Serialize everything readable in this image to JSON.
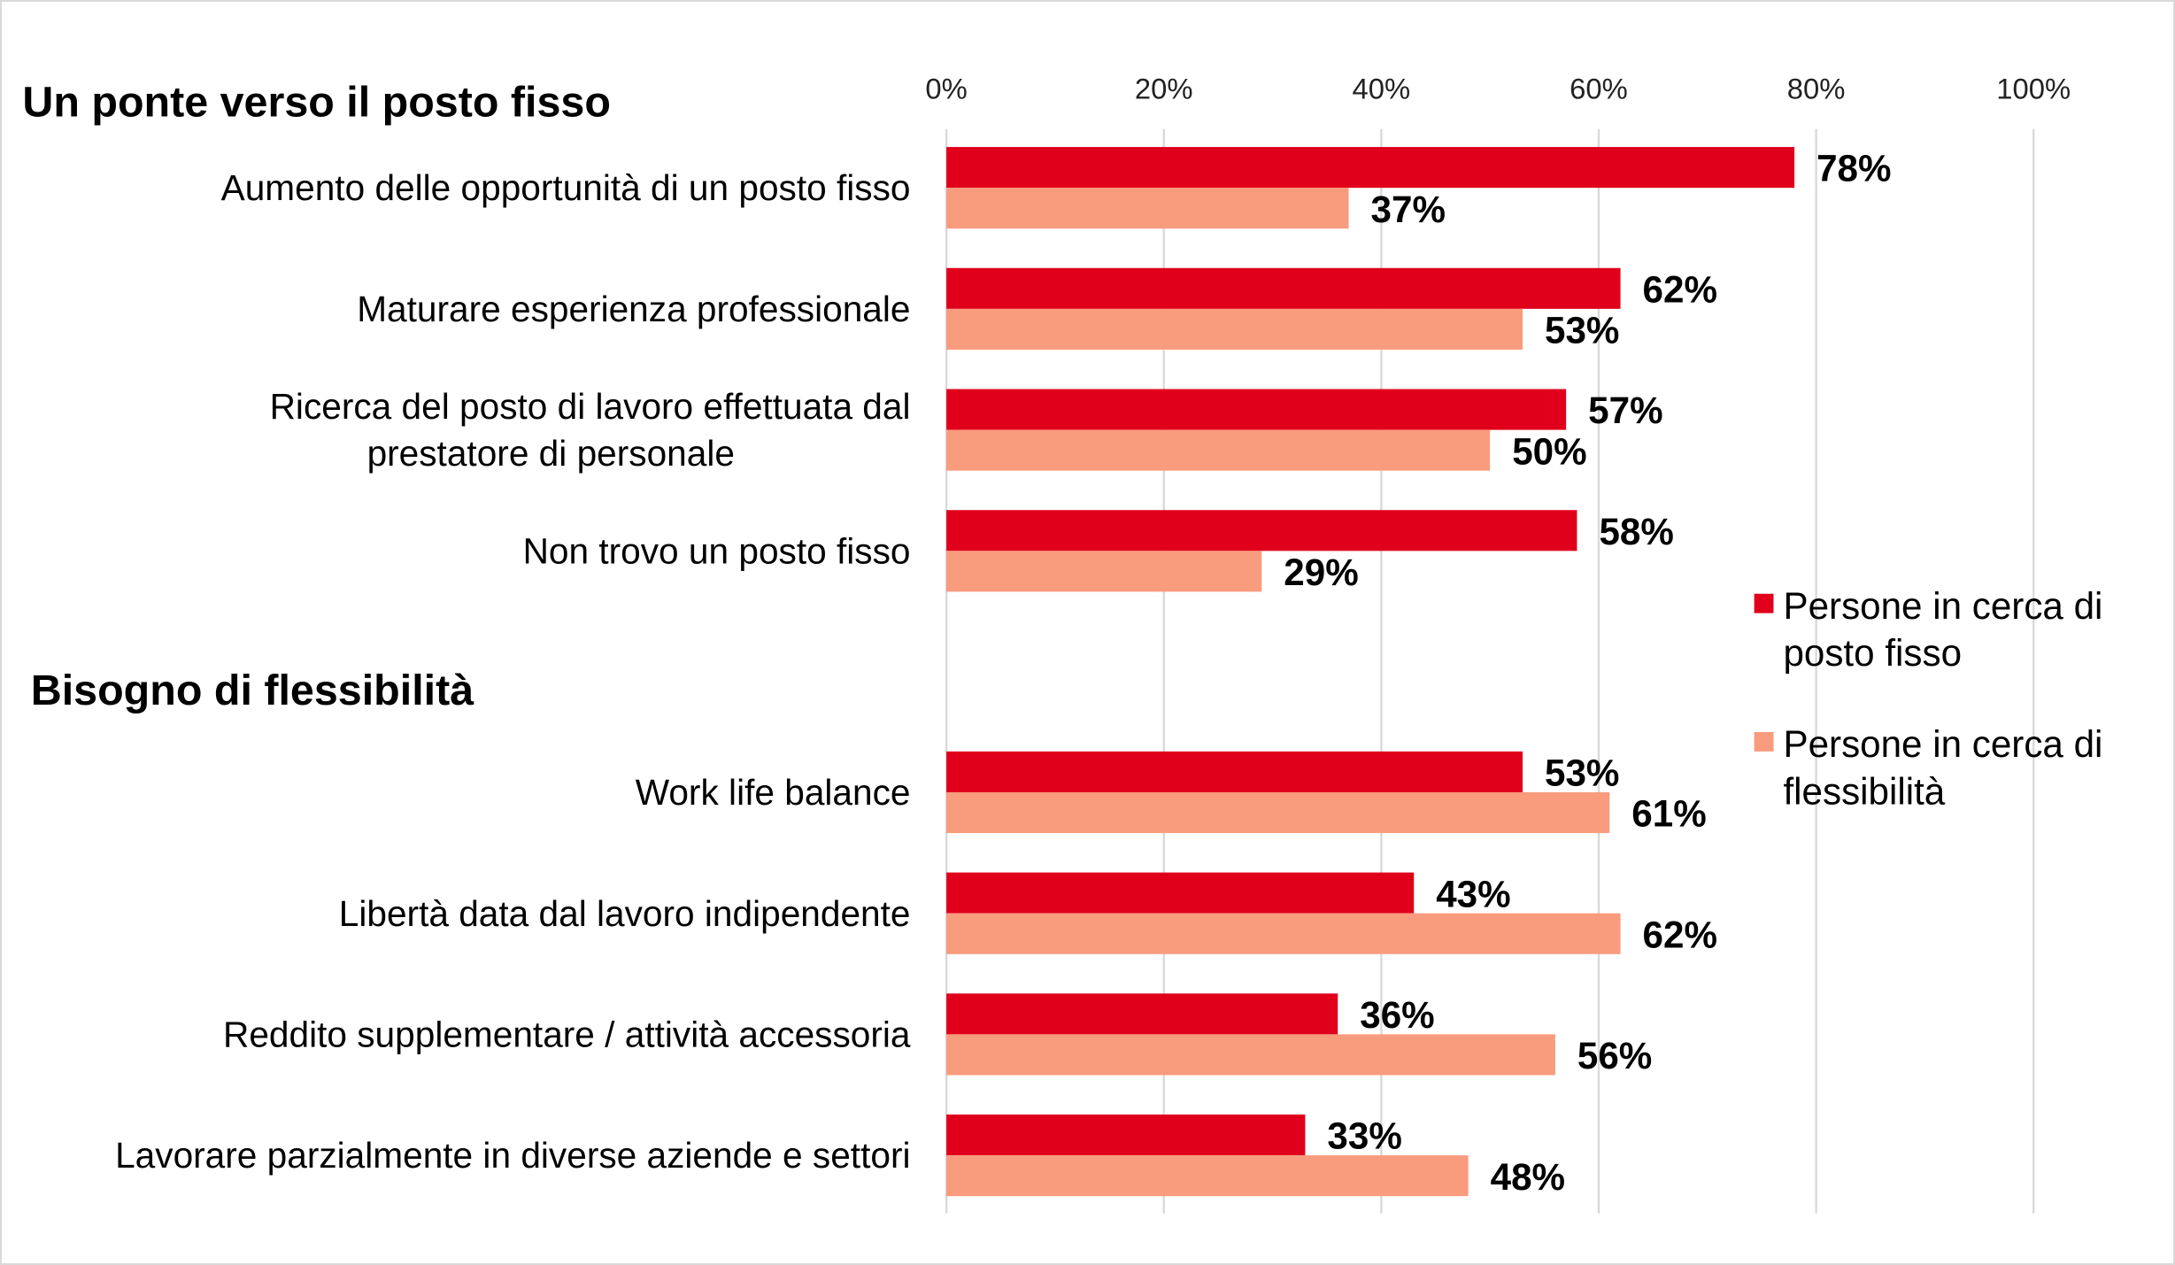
{
  "chart_data": {
    "type": "bar",
    "orientation": "horizontal",
    "xlim": [
      0,
      100
    ],
    "x_ticks": [
      "0%",
      "20%",
      "40%",
      "60%",
      "80%",
      "100%"
    ],
    "grid": true,
    "legend_placement": "right",
    "colors": {
      "fisso": "#e0001b",
      "flessibilita": "#f99b7d",
      "grid": "#d9d9d9"
    },
    "groups": [
      {
        "title": "Un ponte verso il posto fisso",
        "categories": [
          [
            "Aumento delle opportunità di un posto fisso"
          ],
          [
            "Maturare esperienza professionale"
          ],
          [
            "Ricerca del posto di lavoro effettuata dal",
            "prestatore di personale"
          ],
          [
            "Non trovo un posto fisso"
          ]
        ],
        "series": [
          {
            "name": "Persone in cerca di posto fisso",
            "values": [
              78,
              62,
              57,
              58
            ],
            "labels": [
              "78%",
              "62%",
              "57%",
              "58%"
            ]
          },
          {
            "name": "Persone in cerca di flessibilità",
            "values": [
              37,
              53,
              50,
              29
            ],
            "labels": [
              "37%",
              "53%",
              "50%",
              "29%"
            ]
          }
        ]
      },
      {
        "title": "Bisogno di flessibilità",
        "categories": [
          [
            "Work life balance"
          ],
          [
            "Libertà data dal lavoro indipendente"
          ],
          [
            "Reddito supplementare / attività accessoria"
          ],
          [
            "Lavorare parzialmente in diverse aziende e settori"
          ]
        ],
        "series": [
          {
            "name": "Persone in cerca di posto fisso",
            "values": [
              53,
              43,
              36,
              33
            ],
            "labels": [
              "53%",
              "43%",
              "36%",
              "33%"
            ]
          },
          {
            "name": "Persone in cerca di flessibilità",
            "values": [
              61,
              62,
              56,
              48
            ],
            "labels": [
              "61%",
              "62%",
              "56%",
              "48%"
            ]
          }
        ]
      }
    ],
    "legend": [
      [
        "Persone in cerca di",
        "posto fisso"
      ],
      [
        "Persone in cerca di",
        "flessibilità"
      ]
    ]
  }
}
